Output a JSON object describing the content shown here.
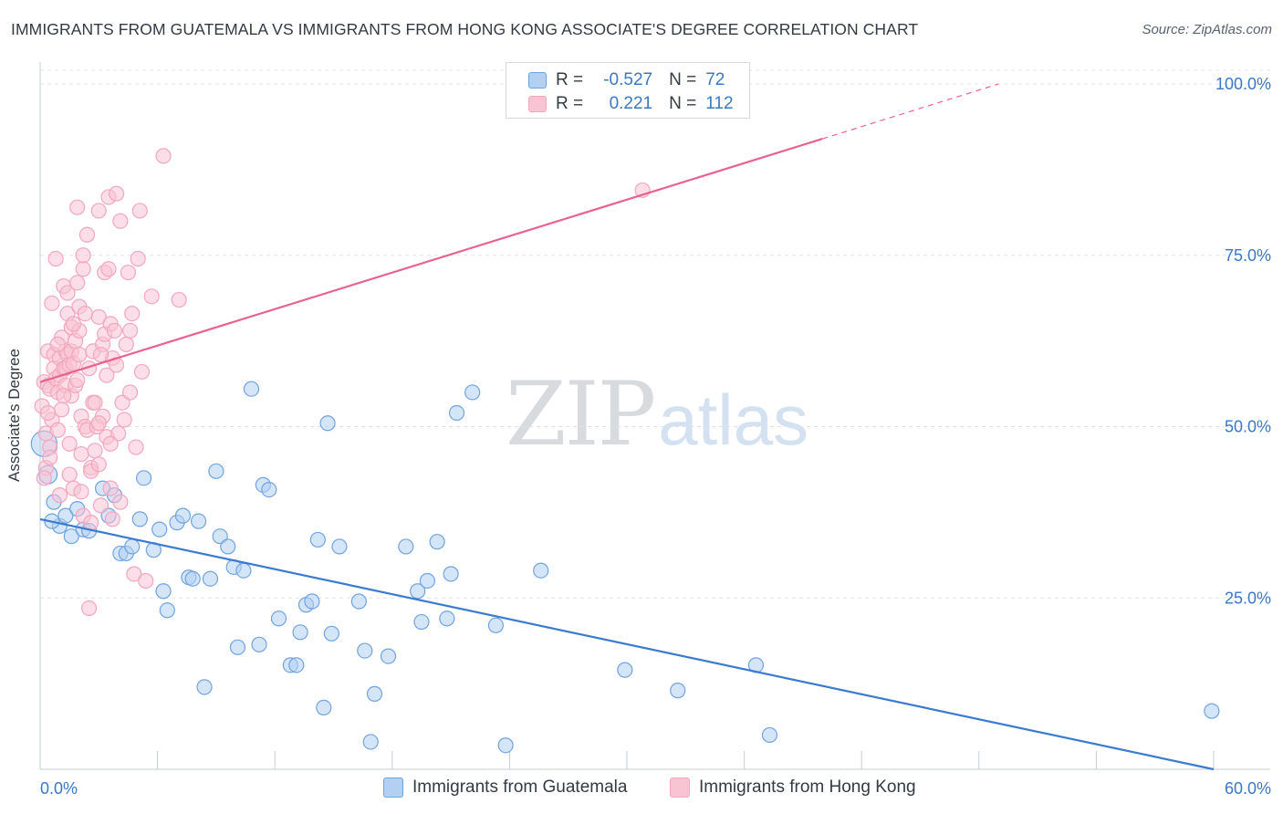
{
  "title": "IMMIGRANTS FROM GUATEMALA VS IMMIGRANTS FROM HONG KONG ASSOCIATE'S DEGREE CORRELATION CHART",
  "source": "Source: ZipAtlas.com",
  "watermark": {
    "zip": "ZIP",
    "atlas": "atlas"
  },
  "legend": {
    "r_label": "R =",
    "n_label": "N =",
    "rows": [
      {
        "name": "Immigrants from Guatemala",
        "r": "-0.527",
        "n": "72",
        "color": "#6fa3e0"
      },
      {
        "name": "Immigrants from Hong Kong",
        "r": "0.221",
        "n": "112",
        "color": "#f3a6bf"
      }
    ]
  },
  "colors": {
    "blue": "#3a7ad0",
    "blue_fill": "#b3cff2",
    "pink": "#e8628e",
    "pink_fill": "#f8c3d3",
    "grid": "#dfe3e8",
    "axis_text": "#3a78c4"
  },
  "chart_data": {
    "type": "scatter",
    "title": "IMMIGRANTS FROM GUATEMALA VS IMMIGRANTS FROM HONG KONG ASSOCIATE'S DEGREE CORRELATION CHART",
    "xlabel": "",
    "ylabel": "Associate's Degree",
    "xlim": [
      0,
      60
    ],
    "ylim": [
      0,
      102
    ],
    "x_tick_labels": [
      "0.0%",
      "60.0%"
    ],
    "y_ticks": [
      25,
      50,
      75,
      100
    ],
    "y_tick_labels": [
      "25.0%",
      "50.0%",
      "75.0%",
      "100.0%"
    ],
    "grid": true,
    "series": [
      {
        "name": "Immigrants from Guatemala",
        "r": -0.527,
        "n": 72,
        "trend": {
          "x0": 0,
          "y0": 36.5,
          "x1": 60,
          "y1": 0
        },
        "points": [
          [
            0.2,
            47.5,
            14
          ],
          [
            0.4,
            43,
            10
          ],
          [
            0.7,
            39,
            8
          ],
          [
            1.0,
            35.5,
            8
          ],
          [
            1.3,
            37,
            8
          ],
          [
            1.6,
            34,
            8
          ],
          [
            1.9,
            38,
            8
          ],
          [
            2.2,
            35,
            8
          ],
          [
            2.5,
            34.8,
            8
          ],
          [
            3.2,
            41,
            8
          ],
          [
            3.5,
            37,
            8
          ],
          [
            3.8,
            40,
            8
          ],
          [
            4.1,
            31.5,
            8
          ],
          [
            4.4,
            31.5,
            8
          ],
          [
            4.7,
            32.5,
            8
          ],
          [
            5.1,
            36.5,
            8
          ],
          [
            5.3,
            42.5,
            8
          ],
          [
            5.8,
            32,
            8
          ],
          [
            6.1,
            35,
            8
          ],
          [
            6.3,
            26,
            8
          ],
          [
            6.5,
            23.2,
            8
          ],
          [
            7.0,
            36,
            8
          ],
          [
            7.3,
            37,
            8
          ],
          [
            7.6,
            28,
            8
          ],
          [
            7.8,
            27.8,
            8
          ],
          [
            8.1,
            36.2,
            8
          ],
          [
            8.4,
            12,
            8
          ],
          [
            8.7,
            27.8,
            8
          ],
          [
            9.0,
            43.5,
            8
          ],
          [
            9.2,
            34,
            8
          ],
          [
            9.6,
            32.5,
            8
          ],
          [
            9.9,
            29.5,
            8
          ],
          [
            10.1,
            17.8,
            8
          ],
          [
            10.4,
            29,
            8
          ],
          [
            10.8,
            55.5,
            8
          ],
          [
            11.2,
            18.2,
            8
          ],
          [
            11.4,
            41.5,
            8
          ],
          [
            11.7,
            40.8,
            8
          ],
          [
            12.2,
            22,
            8
          ],
          [
            12.8,
            15.2,
            8
          ],
          [
            13.1,
            15.2,
            8
          ],
          [
            13.3,
            20,
            8
          ],
          [
            13.6,
            24,
            8
          ],
          [
            13.9,
            24.5,
            8
          ],
          [
            14.2,
            33.5,
            8
          ],
          [
            14.5,
            9,
            8
          ],
          [
            14.7,
            50.5,
            8
          ],
          [
            14.9,
            19.8,
            8
          ],
          [
            15.3,
            32.5,
            8
          ],
          [
            16.3,
            24.5,
            8
          ],
          [
            16.6,
            17.3,
            8
          ],
          [
            16.9,
            4,
            8
          ],
          [
            17.1,
            11,
            8
          ],
          [
            17.8,
            16.5,
            8
          ],
          [
            18.7,
            32.5,
            8
          ],
          [
            19.3,
            26,
            8
          ],
          [
            19.5,
            21.5,
            8
          ],
          [
            19.8,
            27.5,
            8
          ],
          [
            20.3,
            33.2,
            8
          ],
          [
            20.8,
            22,
            8
          ],
          [
            21.0,
            28.5,
            8
          ],
          [
            21.3,
            52,
            8
          ],
          [
            22.1,
            55,
            8
          ],
          [
            23.3,
            21,
            8
          ],
          [
            23.8,
            3.5,
            8
          ],
          [
            25.6,
            29,
            8
          ],
          [
            29.9,
            14.5,
            8
          ],
          [
            32.6,
            11.5,
            8
          ],
          [
            36.6,
            15.2,
            8
          ],
          [
            37.3,
            5,
            8
          ],
          [
            59.9,
            8.5,
            8
          ],
          [
            0.6,
            36.2,
            8
          ]
        ]
      },
      {
        "name": "Immigrants from Hong Kong",
        "r": 0.221,
        "n": 112,
        "trend": {
          "x0": 0,
          "y0": 56.5,
          "x1": 40,
          "y1": 92,
          "dash_to_x": 49,
          "dash_to_y": 100
        },
        "points": [
          [
            0.1,
            53,
            8
          ],
          [
            0.2,
            56.5,
            8
          ],
          [
            0.3,
            49,
            8
          ],
          [
            0.3,
            44,
            8
          ],
          [
            0.4,
            56,
            8
          ],
          [
            0.4,
            61,
            8
          ],
          [
            0.5,
            55.5,
            8
          ],
          [
            0.6,
            68,
            8
          ],
          [
            0.6,
            51,
            8
          ],
          [
            0.7,
            58.5,
            8
          ],
          [
            0.7,
            60.5,
            8
          ],
          [
            0.8,
            57,
            8
          ],
          [
            0.8,
            74.5,
            8
          ],
          [
            0.9,
            55,
            8
          ],
          [
            0.9,
            49.5,
            8
          ],
          [
            1.0,
            60,
            8
          ],
          [
            1.0,
            57.5,
            8
          ],
          [
            1.1,
            63,
            8
          ],
          [
            1.1,
            52.5,
            8
          ],
          [
            1.2,
            58.5,
            8
          ],
          [
            1.2,
            70.5,
            8
          ],
          [
            1.3,
            58.5,
            8
          ],
          [
            1.3,
            61,
            8
          ],
          [
            1.3,
            56,
            8
          ],
          [
            1.4,
            69.5,
            8
          ],
          [
            1.4,
            60.5,
            8
          ],
          [
            1.5,
            47.5,
            8
          ],
          [
            1.5,
            59,
            8
          ],
          [
            1.6,
            61,
            8
          ],
          [
            1.6,
            54.5,
            8
          ],
          [
            1.6,
            64.5,
            8
          ],
          [
            1.7,
            59.2,
            8
          ],
          [
            1.7,
            41,
            8
          ],
          [
            1.8,
            56,
            8
          ],
          [
            1.8,
            62.5,
            8
          ],
          [
            1.9,
            82,
            8
          ],
          [
            1.9,
            71,
            8
          ],
          [
            2.0,
            60.5,
            8
          ],
          [
            2.0,
            64,
            8
          ],
          [
            2.1,
            51.5,
            8
          ],
          [
            2.1,
            46,
            8
          ],
          [
            2.2,
            73,
            8
          ],
          [
            2.2,
            75,
            8
          ],
          [
            2.2,
            37,
            8
          ],
          [
            2.3,
            50,
            8
          ],
          [
            2.4,
            78,
            8
          ],
          [
            2.4,
            49.5,
            8
          ],
          [
            2.5,
            23.5,
            8
          ],
          [
            2.6,
            44,
            8
          ],
          [
            2.6,
            43.5,
            8
          ],
          [
            2.7,
            53.5,
            8
          ],
          [
            2.7,
            61,
            8
          ],
          [
            2.8,
            46.5,
            8
          ],
          [
            2.9,
            50,
            8
          ],
          [
            3.0,
            81.5,
            8
          ],
          [
            3.0,
            44.5,
            8
          ],
          [
            3.0,
            66,
            8
          ],
          [
            3.1,
            38.5,
            8
          ],
          [
            3.2,
            62,
            8
          ],
          [
            3.2,
            51.5,
            8
          ],
          [
            3.3,
            72.5,
            8
          ],
          [
            3.3,
            63.5,
            8
          ],
          [
            3.4,
            57.5,
            8
          ],
          [
            3.4,
            48.5,
            8
          ],
          [
            3.5,
            73,
            8
          ],
          [
            3.5,
            83.5,
            8
          ],
          [
            3.6,
            65,
            8
          ],
          [
            3.6,
            41,
            8
          ],
          [
            3.7,
            60,
            8
          ],
          [
            3.7,
            36.5,
            8
          ],
          [
            3.8,
            64,
            8
          ],
          [
            3.9,
            84,
            8
          ],
          [
            3.9,
            59,
            8
          ],
          [
            4.0,
            49,
            8
          ],
          [
            4.1,
            80,
            8
          ],
          [
            4.1,
            39,
            8
          ],
          [
            4.2,
            53.5,
            8
          ],
          [
            4.3,
            51,
            8
          ],
          [
            4.4,
            62,
            8
          ],
          [
            4.5,
            72.5,
            8
          ],
          [
            4.6,
            55,
            8
          ],
          [
            4.6,
            64,
            8
          ],
          [
            4.7,
            66.5,
            8
          ],
          [
            4.8,
            28.5,
            8
          ],
          [
            4.9,
            47,
            8
          ],
          [
            5.0,
            74.5,
            8
          ],
          [
            5.1,
            81.5,
            8
          ],
          [
            5.2,
            58,
            8
          ],
          [
            5.4,
            27.5,
            8
          ],
          [
            5.7,
            69,
            8
          ],
          [
            6.3,
            89.5,
            8
          ],
          [
            7.1,
            68.5,
            8
          ],
          [
            30.8,
            84.5,
            8
          ],
          [
            0.2,
            42.5,
            8
          ],
          [
            0.5,
            47,
            8
          ],
          [
            1.9,
            56.8,
            8
          ],
          [
            2.5,
            58.5,
            8
          ],
          [
            2.8,
            53.5,
            8
          ],
          [
            3.1,
            60.5,
            8
          ],
          [
            0.9,
            62,
            8
          ],
          [
            1.4,
            66.5,
            8
          ],
          [
            2.0,
            67.5,
            8
          ],
          [
            2.3,
            66.5,
            8
          ],
          [
            0.5,
            45.5,
            8
          ],
          [
            1.7,
            65,
            8
          ],
          [
            3.0,
            50.5,
            8
          ],
          [
            1.2,
            54.5,
            8
          ],
          [
            0.4,
            52,
            8
          ],
          [
            2.6,
            36,
            8
          ],
          [
            1.0,
            40,
            8
          ],
          [
            3.6,
            47.5,
            8
          ],
          [
            2.1,
            40.5,
            8
          ],
          [
            1.5,
            43,
            8
          ]
        ]
      }
    ]
  }
}
